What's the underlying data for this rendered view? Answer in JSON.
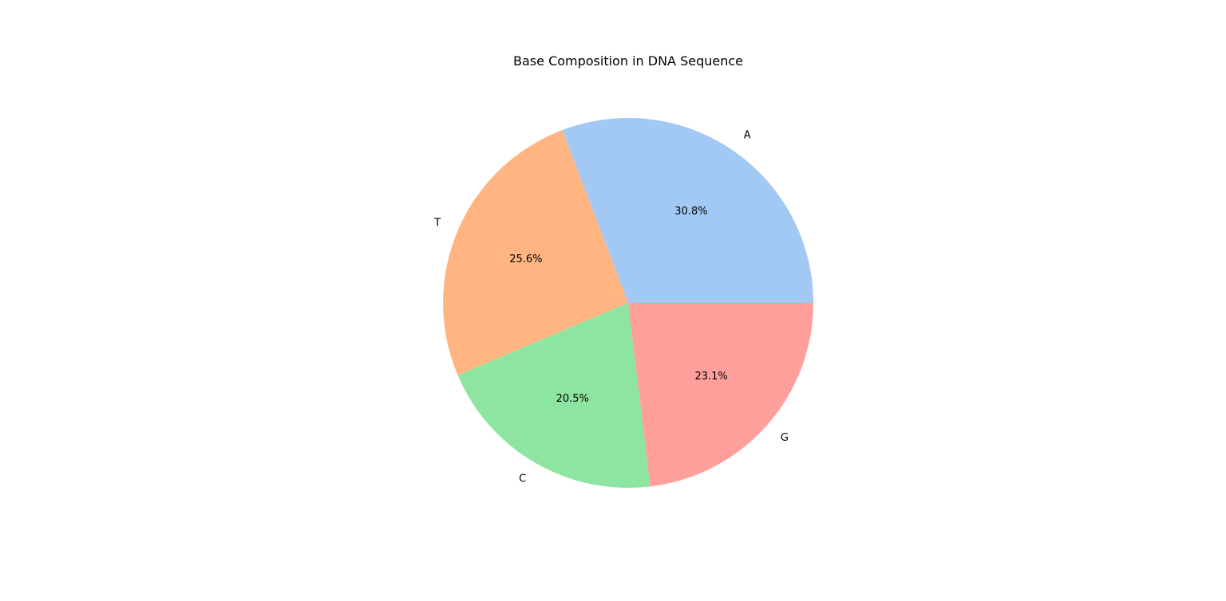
{
  "chart_data": {
    "type": "pie",
    "title": "Base Composition in DNA Sequence",
    "slices": [
      {
        "label": "A",
        "percent": 30.8,
        "percent_label": "30.8%",
        "color": "#a1c9f4"
      },
      {
        "label": "T",
        "percent": 25.6,
        "percent_label": "25.6%",
        "color": "#ffb482"
      },
      {
        "label": "C",
        "percent": 20.5,
        "percent_label": "20.5%",
        "color": "#8de5a1"
      },
      {
        "label": "G",
        "percent": 23.1,
        "percent_label": "23.1%",
        "color": "#ff9f9b"
      }
    ],
    "start_angle_deg": 0,
    "direction": "counterclockwise",
    "legend": "none"
  }
}
